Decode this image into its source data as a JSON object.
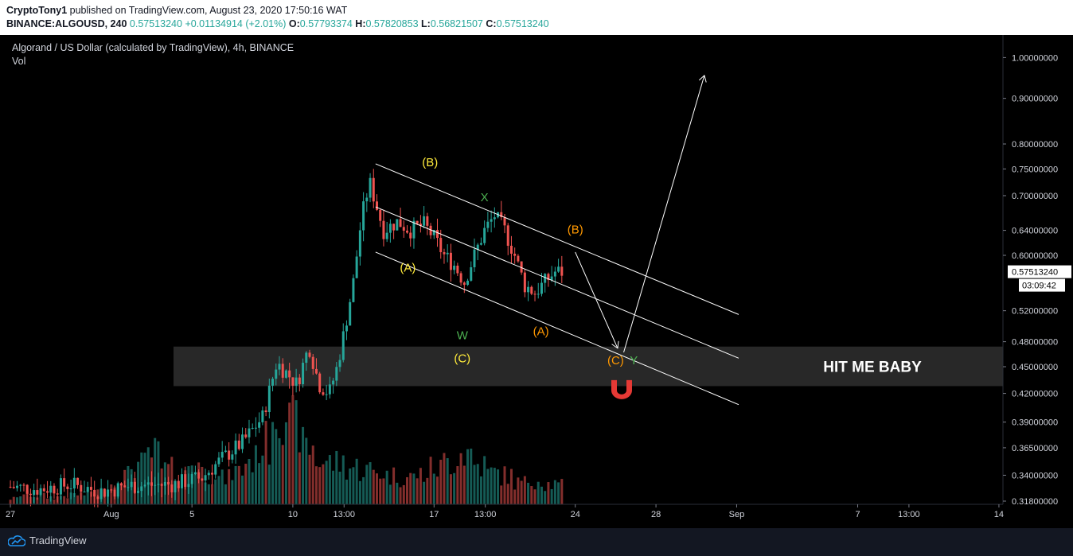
{
  "header": {
    "author": "CryptoTony1",
    "published": "published on TradingView.com, August 23, 2020 17:50:16 WAT",
    "symbol": "BINANCE:ALGOUSD, 240",
    "last": "0.57513240",
    "change": "+0.01134914 (+2.01%)",
    "o_label": "O:",
    "o_value": "0.57793374",
    "h_label": "H:",
    "h_value": "0.57820853",
    "l_label": "L:",
    "l_value": "0.56821507",
    "c_label": "C:",
    "c_value": "0.57513240"
  },
  "chart_title": "Algorand / US Dollar (calculated by TradingView), 4h, BINANCE",
  "vol_label": "Vol",
  "footer": {
    "brand": "TradingView"
  },
  "colors": {
    "up": "#26a69a",
    "down": "#ef5350",
    "background": "#000000",
    "axis_text": "#d1d4dc"
  },
  "chart_data": {
    "type": "candlestick",
    "title": "Algorand / US Dollar (calculated by TradingView), 4h, BINANCE",
    "y_scale": "log",
    "ylim": [
      0.318,
      1.03
    ],
    "y_ticks": [
      "1.00000000",
      "0.90000000",
      "0.80000000",
      "0.75000000",
      "0.70000000",
      "0.64000000",
      "0.60000000",
      "0.52000000",
      "0.48000000",
      "0.45000000",
      "0.42000000",
      "0.39000000",
      "0.36500000",
      "0.34000000",
      "0.31800000"
    ],
    "y_tick_values": [
      1.0,
      0.9,
      0.8,
      0.75,
      0.7,
      0.64,
      0.6,
      0.52,
      0.48,
      0.45,
      0.42,
      0.39,
      0.365,
      0.34,
      0.318
    ],
    "last_price_label": "0.57513240",
    "countdown": "03:09:42",
    "x_ticks": [
      {
        "label": "27",
        "day": 27
      },
      {
        "label": "Aug",
        "day": 32
      },
      {
        "label": "5",
        "day": 36
      },
      {
        "label": "10",
        "day": 41
      },
      {
        "label": "13:00",
        "day": 43.54
      },
      {
        "label": "17",
        "day": 48
      },
      {
        "label": "13:00",
        "day": 50.54
      },
      {
        "label": "24",
        "day": 55
      },
      {
        "label": "28",
        "day": 59
      },
      {
        "label": "Sep",
        "day": 63
      },
      {
        "label": "7",
        "day": 69
      },
      {
        "label": "13:00",
        "day": 71.54
      },
      {
        "label": "14",
        "day": 76
      }
    ],
    "x_range_days": [
      26.8,
      76.2
    ],
    "series_points": [
      [
        27.0,
        0.33
      ],
      [
        28.5,
        0.328
      ],
      [
        30.0,
        0.332
      ],
      [
        31.5,
        0.326
      ],
      [
        33.0,
        0.331
      ],
      [
        35.0,
        0.332
      ],
      [
        36.5,
        0.338
      ],
      [
        37.5,
        0.355
      ],
      [
        38.5,
        0.37
      ],
      [
        39.5,
        0.395
      ],
      [
        40.2,
        0.455
      ],
      [
        40.8,
        0.44
      ],
      [
        41.2,
        0.43
      ],
      [
        41.8,
        0.475
      ],
      [
        42.3,
        0.43
      ],
      [
        42.8,
        0.42
      ],
      [
        43.2,
        0.45
      ],
      [
        43.6,
        0.5
      ],
      [
        44.0,
        0.56
      ],
      [
        44.4,
        0.66
      ],
      [
        44.8,
        0.725
      ],
      [
        45.0,
        0.7
      ],
      [
        45.5,
        0.64
      ],
      [
        46.2,
        0.655
      ],
      [
        46.8,
        0.64
      ],
      [
        47.5,
        0.65
      ],
      [
        48.0,
        0.628
      ],
      [
        48.5,
        0.6
      ],
      [
        49.0,
        0.585
      ],
      [
        49.5,
        0.56
      ],
      [
        50.0,
        0.6
      ],
      [
        50.5,
        0.64
      ],
      [
        51.0,
        0.665
      ],
      [
        51.5,
        0.64
      ],
      [
        52.0,
        0.6
      ],
      [
        52.5,
        0.555
      ],
      [
        53.0,
        0.545
      ],
      [
        53.5,
        0.56
      ],
      [
        54.0,
        0.575
      ],
      [
        54.4,
        0.575
      ]
    ],
    "series_volumes": [
      8,
      14,
      12,
      10,
      12,
      14,
      18,
      28,
      40,
      55,
      70,
      48,
      40,
      58,
      44,
      36,
      46,
      62,
      85,
      135,
      110,
      80,
      60,
      58,
      52,
      48,
      45,
      40,
      38,
      42,
      50,
      60,
      72,
      55,
      44,
      40,
      30,
      34,
      28,
      26
    ],
    "annotations": [
      {
        "text": "(B)",
        "color": "#ffeb3b"
      },
      {
        "text": "X",
        "color": "#4caf50"
      },
      {
        "text": "(B)",
        "color": "#ff9800"
      },
      {
        "text": "(A)",
        "color": "#ffeb3b"
      },
      {
        "text": "W",
        "color": "#4caf50"
      },
      {
        "text": "(C)",
        "color": "#ffeb3b"
      },
      {
        "text": "(A)",
        "color": "#ff9800"
      },
      {
        "text": "(C)",
        "color": "#ff9800"
      },
      {
        "text": "Y",
        "color": "#4caf50"
      }
    ],
    "zone": {
      "low": 0.428,
      "high": 0.474,
      "label": "HIT ME BABY"
    }
  }
}
